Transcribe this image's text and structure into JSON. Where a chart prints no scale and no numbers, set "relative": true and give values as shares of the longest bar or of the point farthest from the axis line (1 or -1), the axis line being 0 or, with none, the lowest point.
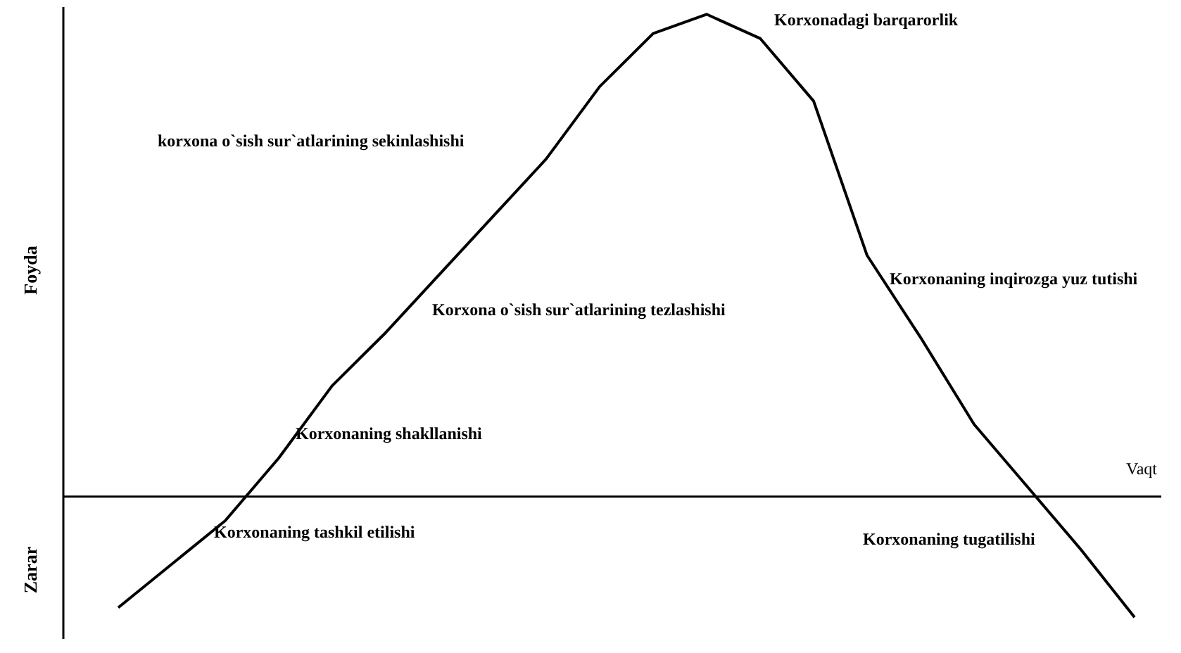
{
  "chart_data": {
    "type": "line",
    "relative": true,
    "xlabel": "Vaqt",
    "ylabel": "Foyda",
    "categories": [
      null,
      null,
      null,
      null,
      null,
      null,
      null,
      null,
      null,
      null,
      null,
      null,
      null,
      null,
      null,
      null,
      null,
      null,
      null,
      null
    ],
    "series": [
      {
        "color": "#000000",
        "values": [
          -0.23,
          -0.14,
          -0.05,
          0.08,
          0.23,
          0.34,
          0.46,
          0.58,
          0.7,
          0.85,
          0.96,
          1.0,
          0.95,
          0.82,
          0.5,
          0.33,
          0.15,
          0.02,
          -0.11,
          -0.25
        ]
      }
    ],
    "annotations": [
      "Korxonadagi barqarorlik",
      "korxona o`sish sur`atlarining sekinlashishi",
      "Korxona o`sish sur`atlarining tezlashishi",
      "Korxonaning shakllanishi",
      "Korxonaning tashkil etilishi",
      "Korxonaning inqirozga yuz tutishi",
      "Korxonaning tugatilishi",
      "Zarar"
    ]
  }
}
